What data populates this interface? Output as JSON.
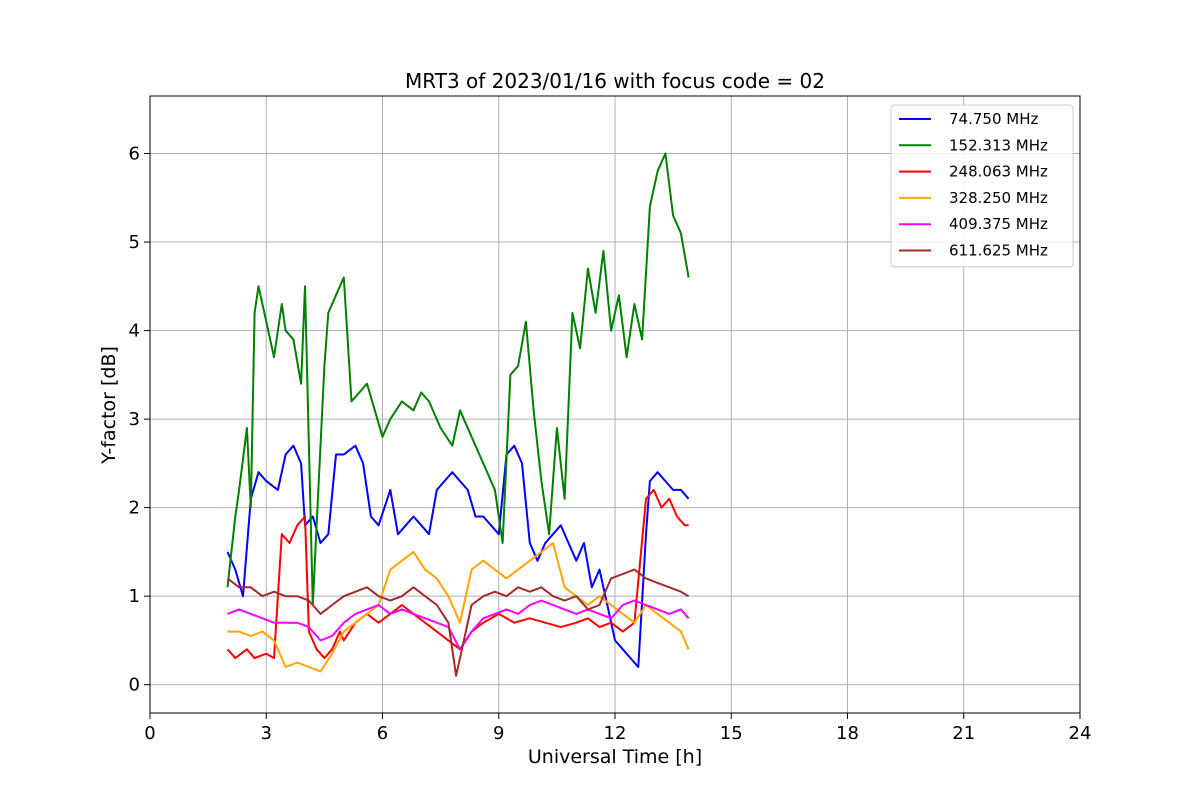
{
  "chart_data": {
    "type": "line",
    "title": "MRT3 of 2023/01/16 with focus code = 02",
    "xlabel": "Universal Time [h]",
    "ylabel": "Y-factor [dB]",
    "xlim": [
      0,
      24
    ],
    "ylim": [
      -0.32,
      6.65
    ],
    "xticks": [
      0,
      3,
      6,
      9,
      12,
      15,
      18,
      21,
      24
    ],
    "yticks": [
      0,
      1,
      2,
      3,
      4,
      5,
      6
    ],
    "grid": true,
    "legend_position": "top-right",
    "series": [
      {
        "name": " 74.750 MHz",
        "color": "#0000ff",
        "x": [
          2.0,
          2.2,
          2.4,
          2.6,
          2.8,
          3.0,
          3.3,
          3.5,
          3.7,
          3.9,
          4.0,
          4.2,
          4.4,
          4.6,
          4.8,
          5.0,
          5.3,
          5.5,
          5.7,
          5.9,
          6.2,
          6.4,
          6.6,
          6.8,
          7.0,
          7.2,
          7.4,
          7.6,
          7.8,
          8.0,
          8.2,
          8.4,
          8.6,
          8.8,
          9.0,
          9.2,
          9.4,
          9.6,
          9.8,
          10.0,
          10.2,
          10.4,
          10.6,
          10.8,
          11.0,
          11.2,
          11.4,
          11.6,
          11.8,
          12.0,
          12.2,
          12.4,
          12.6,
          12.8,
          12.9,
          13.1,
          13.3,
          13.5,
          13.7,
          13.9
        ],
        "y": [
          1.5,
          1.3,
          1.0,
          2.1,
          2.4,
          2.3,
          2.2,
          2.6,
          2.7,
          2.5,
          1.8,
          1.9,
          1.6,
          1.7,
          2.6,
          2.6,
          2.7,
          2.5,
          1.9,
          1.8,
          2.2,
          1.7,
          1.8,
          1.9,
          1.8,
          1.7,
          2.2,
          2.3,
          2.4,
          2.3,
          2.2,
          1.9,
          1.9,
          1.8,
          1.7,
          2.6,
          2.7,
          2.5,
          1.6,
          1.4,
          1.6,
          1.7,
          1.8,
          1.6,
          1.4,
          1.6,
          1.1,
          1.3,
          0.9,
          0.5,
          0.4,
          0.3,
          0.2,
          1.7,
          2.3,
          2.4,
          2.3,
          2.2,
          2.2,
          2.1
        ]
      },
      {
        "name": "152.313 MHz",
        "color": "#008000",
        "x": [
          2.0,
          2.2,
          2.3,
          2.5,
          2.6,
          2.7,
          2.8,
          3.0,
          3.2,
          3.4,
          3.5,
          3.7,
          3.9,
          4.0,
          4.2,
          4.3,
          4.5,
          4.6,
          4.8,
          5.0,
          5.2,
          5.4,
          5.6,
          5.8,
          6.0,
          6.2,
          6.5,
          6.8,
          7.0,
          7.2,
          7.5,
          7.8,
          8.0,
          8.3,
          8.6,
          8.9,
          9.1,
          9.3,
          9.5,
          9.7,
          9.9,
          10.1,
          10.3,
          10.5,
          10.7,
          10.9,
          11.1,
          11.3,
          11.5,
          11.7,
          11.9,
          12.1,
          12.3,
          12.5,
          12.7,
          12.9,
          13.1,
          13.3,
          13.5,
          13.7,
          13.9
        ],
        "y": [
          1.1,
          1.9,
          2.2,
          2.9,
          2.0,
          4.2,
          4.5,
          4.1,
          3.7,
          4.3,
          4.0,
          3.9,
          3.4,
          4.5,
          0.9,
          1.8,
          3.6,
          4.2,
          4.4,
          4.6,
          3.2,
          3.3,
          3.4,
          3.1,
          2.8,
          3.0,
          3.2,
          3.1,
          3.3,
          3.2,
          2.9,
          2.7,
          3.1,
          2.8,
          2.5,
          2.2,
          1.6,
          3.5,
          3.6,
          4.1,
          3.1,
          2.3,
          1.7,
          2.9,
          2.1,
          4.2,
          3.8,
          4.7,
          4.2,
          4.9,
          4.0,
          4.4,
          3.7,
          4.3,
          3.9,
          5.4,
          5.8,
          6.0,
          5.3,
          5.1,
          4.6
        ]
      },
      {
        "name": "248.063 MHz",
        "color": "#ff0000",
        "x": [
          2.0,
          2.2,
          2.5,
          2.7,
          3.0,
          3.2,
          3.4,
          3.6,
          3.8,
          4.0,
          4.1,
          4.3,
          4.5,
          4.7,
          4.9,
          5.0,
          5.3,
          5.6,
          5.9,
          6.2,
          6.5,
          6.8,
          7.1,
          7.4,
          7.7,
          8.0,
          8.3,
          8.6,
          9.0,
          9.4,
          9.8,
          10.2,
          10.6,
          11.0,
          11.3,
          11.6,
          11.9,
          12.2,
          12.5,
          12.8,
          13.0,
          13.2,
          13.4,
          13.6,
          13.8,
          13.9
        ],
        "y": [
          0.4,
          0.3,
          0.4,
          0.3,
          0.35,
          0.3,
          1.7,
          1.6,
          1.8,
          1.9,
          0.6,
          0.4,
          0.3,
          0.4,
          0.6,
          0.5,
          0.7,
          0.8,
          0.7,
          0.8,
          0.9,
          0.8,
          0.7,
          0.6,
          0.5,
          0.4,
          0.6,
          0.7,
          0.8,
          0.7,
          0.75,
          0.7,
          0.65,
          0.7,
          0.75,
          0.65,
          0.7,
          0.6,
          0.7,
          2.1,
          2.2,
          2.0,
          2.1,
          1.9,
          1.8,
          1.8
        ]
      },
      {
        "name": "328.250 MHz",
        "color": "#ffa500",
        "x": [
          2.0,
          2.3,
          2.6,
          2.9,
          3.2,
          3.5,
          3.8,
          4.1,
          4.4,
          4.7,
          5.0,
          5.3,
          5.6,
          5.9,
          6.2,
          6.5,
          6.8,
          7.1,
          7.4,
          7.7,
          8.0,
          8.3,
          8.6,
          8.9,
          9.2,
          9.5,
          9.8,
          10.1,
          10.4,
          10.7,
          11.0,
          11.3,
          11.6,
          11.9,
          12.2,
          12.5,
          12.8,
          13.1,
          13.4,
          13.7,
          13.9
        ],
        "y": [
          0.6,
          0.6,
          0.55,
          0.6,
          0.5,
          0.2,
          0.25,
          0.2,
          0.15,
          0.35,
          0.6,
          0.7,
          0.8,
          0.9,
          1.3,
          1.4,
          1.5,
          1.3,
          1.2,
          1.0,
          0.7,
          1.3,
          1.4,
          1.3,
          1.2,
          1.3,
          1.4,
          1.5,
          1.6,
          1.1,
          1.0,
          0.9,
          1.0,
          0.9,
          0.8,
          0.7,
          0.9,
          0.8,
          0.7,
          0.6,
          0.4
        ]
      },
      {
        "name": "409.375 MHz",
        "color": "#ff00ff",
        "x": [
          2.0,
          2.3,
          2.6,
          2.9,
          3.2,
          3.5,
          3.8,
          4.1,
          4.4,
          4.7,
          5.0,
          5.3,
          5.6,
          5.9,
          6.2,
          6.5,
          6.8,
          7.1,
          7.4,
          7.7,
          8.0,
          8.3,
          8.6,
          8.9,
          9.2,
          9.5,
          9.8,
          10.1,
          10.4,
          10.7,
          11.0,
          11.3,
          11.6,
          11.9,
          12.2,
          12.5,
          12.8,
          13.1,
          13.4,
          13.7,
          13.9
        ],
        "y": [
          0.8,
          0.85,
          0.8,
          0.75,
          0.7,
          0.7,
          0.7,
          0.65,
          0.5,
          0.55,
          0.7,
          0.8,
          0.85,
          0.9,
          0.8,
          0.85,
          0.8,
          0.75,
          0.7,
          0.65,
          0.4,
          0.6,
          0.75,
          0.8,
          0.85,
          0.8,
          0.9,
          0.95,
          0.9,
          0.85,
          0.8,
          0.85,
          0.8,
          0.75,
          0.9,
          0.95,
          0.9,
          0.85,
          0.8,
          0.85,
          0.75
        ]
      },
      {
        "name": "611.625 MHz",
        "color": "#a52a2a",
        "x": [
          2.0,
          2.3,
          2.6,
          2.9,
          3.2,
          3.5,
          3.8,
          4.1,
          4.4,
          4.7,
          5.0,
          5.3,
          5.6,
          5.9,
          6.2,
          6.5,
          6.8,
          7.1,
          7.4,
          7.7,
          7.9,
          8.1,
          8.3,
          8.6,
          8.9,
          9.2,
          9.5,
          9.8,
          10.1,
          10.4,
          10.7,
          11.0,
          11.3,
          11.6,
          11.9,
          12.2,
          12.5,
          12.8,
          13.1,
          13.4,
          13.7,
          13.9
        ],
        "y": [
          1.2,
          1.1,
          1.1,
          1.0,
          1.05,
          1.0,
          1.0,
          0.95,
          0.8,
          0.9,
          1.0,
          1.05,
          1.1,
          1.0,
          0.95,
          1.0,
          1.1,
          1.0,
          0.9,
          0.7,
          0.1,
          0.5,
          0.9,
          1.0,
          1.05,
          1.0,
          1.1,
          1.05,
          1.1,
          1.0,
          0.95,
          1.0,
          0.85,
          0.9,
          1.2,
          1.25,
          1.3,
          1.2,
          1.15,
          1.1,
          1.05,
          1.0
        ]
      }
    ]
  }
}
